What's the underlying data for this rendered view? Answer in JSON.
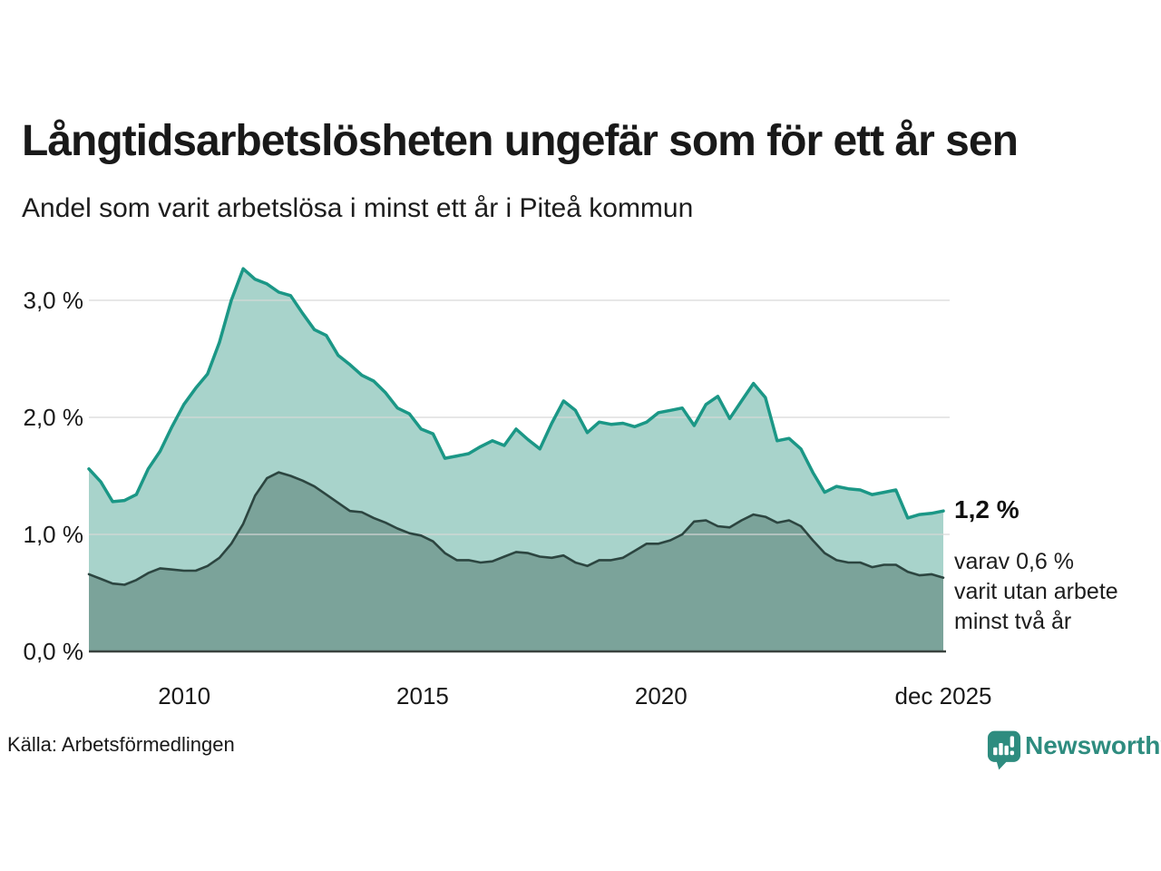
{
  "title": "Långtidsarbetslösheten ungefär som för ett år sen",
  "subtitle": "Andel som varit arbetslösa i minst ett år i Piteå kommun",
  "source": "Källa: Arbetsförmedlingen",
  "logo": {
    "text": "Newsworthy",
    "icon": "newsworthy-badge-bar-chart-icon",
    "color": "#2e8c7f"
  },
  "annotation": {
    "value": "1,2 %",
    "note_lines": [
      "varav 0,6 %",
      "varit utan arbete",
      "minst två år"
    ]
  },
  "chart_data": {
    "type": "area",
    "title": "Långtidsarbetslösheten ungefär som för ett år sen",
    "subtitle": "Andel som varit arbetslösa i minst ett år i Piteå kommun",
    "unit": "%",
    "ylim": [
      0,
      3.35
    ],
    "grid": "horizontal",
    "y_ticks": [
      {
        "label": "3,0 %",
        "value": 3.0
      },
      {
        "label": "2,0 %",
        "value": 2.0
      },
      {
        "label": "1,0 %",
        "value": 1.0
      },
      {
        "label": "0,0 %",
        "value": 0.0
      }
    ],
    "x_range": {
      "start": 2008.0,
      "end": 2025.92,
      "sampling": "quarterly"
    },
    "x_ticks": [
      {
        "label": "2010",
        "year": 2010
      },
      {
        "label": "2015",
        "year": 2015
      },
      {
        "label": "2020",
        "year": 2020
      },
      {
        "label": "dec 2025",
        "year": 2025.92
      }
    ],
    "colors": {
      "total_line": "#1b9786",
      "total_fill": "#a8d3cb",
      "two_year_line": "#2c4540",
      "two_year_fill": "#7ba39a",
      "gridline": "#d8d8d8",
      "baseline": "#3a433f"
    },
    "series": [
      {
        "id": "arbetslosa-minst-ett-ar",
        "end_value_label": "1,2 %",
        "line_color": "#1b9786",
        "fill_color": "#a8d3cb",
        "values": [
          1.56,
          1.45,
          1.28,
          1.29,
          1.34,
          1.56,
          1.71,
          1.92,
          2.11,
          2.25,
          2.37,
          2.64,
          3.0,
          3.27,
          3.18,
          3.14,
          3.07,
          3.04,
          2.89,
          2.75,
          2.7,
          2.53,
          2.45,
          2.36,
          2.31,
          2.21,
          2.08,
          2.03,
          1.9,
          1.86,
          1.65,
          1.67,
          1.69,
          1.75,
          1.8,
          1.76,
          1.9,
          1.81,
          1.73,
          1.95,
          2.14,
          2.06,
          1.87,
          1.96,
          1.94,
          1.95,
          1.92,
          1.96,
          2.04,
          2.06,
          2.08,
          1.93,
          2.11,
          2.18,
          1.99,
          2.14,
          2.29,
          2.17,
          1.8,
          1.82,
          1.73,
          1.53,
          1.36,
          1.41,
          1.39,
          1.38,
          1.34,
          1.36,
          1.38,
          1.14,
          1.17,
          1.18,
          1.2
        ]
      },
      {
        "id": "arbetslosa-minst-tva-ar",
        "end_value_label": "0,6 %",
        "line_color": "#2c4540",
        "fill_color": "#7ba39a",
        "values": [
          0.66,
          0.62,
          0.58,
          0.57,
          0.61,
          0.67,
          0.71,
          0.7,
          0.69,
          0.69,
          0.73,
          0.8,
          0.92,
          1.09,
          1.33,
          1.48,
          1.53,
          1.5,
          1.46,
          1.41,
          1.34,
          1.27,
          1.2,
          1.19,
          1.14,
          1.1,
          1.05,
          1.01,
          0.99,
          0.94,
          0.84,
          0.78,
          0.78,
          0.76,
          0.77,
          0.81,
          0.85,
          0.84,
          0.81,
          0.8,
          0.82,
          0.76,
          0.73,
          0.78,
          0.78,
          0.8,
          0.86,
          0.92,
          0.92,
          0.95,
          1.0,
          1.11,
          1.12,
          1.07,
          1.06,
          1.12,
          1.17,
          1.15,
          1.1,
          1.12,
          1.07,
          0.95,
          0.84,
          0.78,
          0.76,
          0.76,
          0.72,
          0.74,
          0.74,
          0.68,
          0.65,
          0.66,
          0.63
        ]
      }
    ]
  }
}
